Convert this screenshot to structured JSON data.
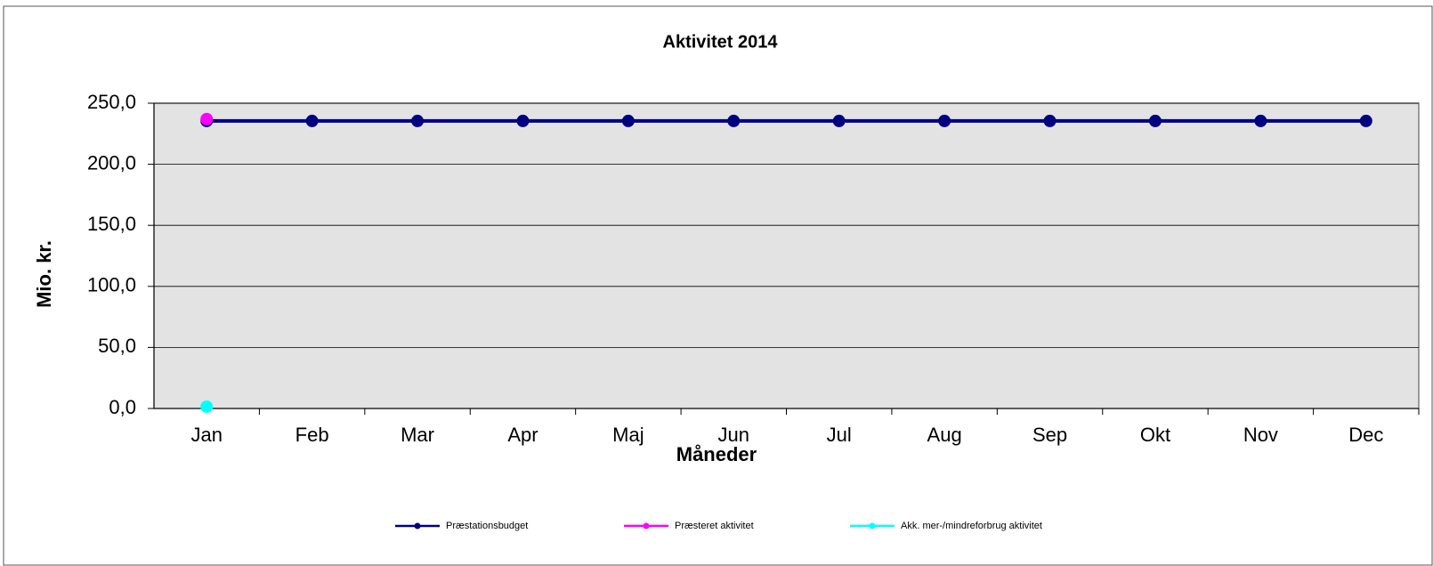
{
  "chart_data": {
    "type": "line",
    "title": "Aktivitet 2014",
    "x_label": "Måneder",
    "y_label": "Mio. kr.",
    "categories": [
      "Jan",
      "Feb",
      "Mar",
      "Apr",
      "Maj",
      "Jun",
      "Jul",
      "Aug",
      "Sep",
      "Okt",
      "Nov",
      "Dec"
    ],
    "series": [
      {
        "name": "Præstationsbudget",
        "color": "#000080",
        "values": [
          235.5,
          235.5,
          235.5,
          235.5,
          235.5,
          235.5,
          235.5,
          235.5,
          235.5,
          235.5,
          235.5,
          235.5
        ]
      },
      {
        "name": "Præsteret aktivitet",
        "color": "#ff00ff",
        "values": [
          237,
          null,
          null,
          null,
          null,
          null,
          null,
          null,
          null,
          null,
          null,
          null
        ]
      },
      {
        "name": "Akk. mer-/mindreforbrug aktivitet",
        "color": "#00ffff",
        "values": [
          1.5,
          null,
          null,
          null,
          null,
          null,
          null,
          null,
          null,
          null,
          null,
          null
        ]
      }
    ],
    "ylim": [
      0,
      250
    ],
    "yticks": [
      {
        "value": 0,
        "label": "0,0"
      },
      {
        "value": 50,
        "label": "50,0"
      },
      {
        "value": 100,
        "label": "100,0"
      },
      {
        "value": 150,
        "label": "150,0"
      },
      {
        "value": 200,
        "label": "200,0"
      },
      {
        "value": 250,
        "label": "250,0"
      }
    ],
    "grid": true,
    "legend": "bottom"
  }
}
